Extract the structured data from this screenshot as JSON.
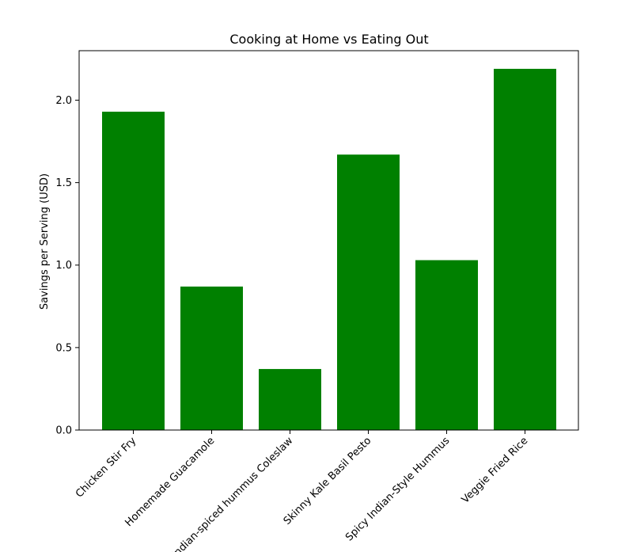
{
  "chart_data": {
    "type": "bar",
    "title": "Cooking at Home vs Eating Out",
    "xlabel": "",
    "ylabel": "Savings per Serving (USD)",
    "categories": [
      "Chicken Stir Fry",
      "Homemade Guacamole",
      "Indian-spiced hummus Coleslaw",
      "Skinny Kale Basil Pesto",
      "Spicy Indian-Style Hummus",
      "Veggie Fried Rice"
    ],
    "values": [
      1.93,
      0.87,
      0.37,
      1.67,
      1.03,
      2.19
    ],
    "ylim": [
      0,
      2.3
    ],
    "yticks": [
      0.0,
      0.5,
      1.0,
      1.5,
      2.0
    ],
    "ytick_labels": [
      "0.0",
      "0.5",
      "1.0",
      "1.5",
      "2.0"
    ],
    "bar_color": "#008000",
    "grid": false
  }
}
